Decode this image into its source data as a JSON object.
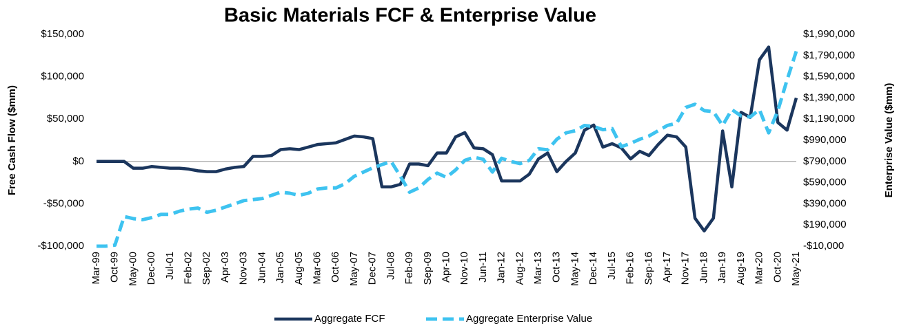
{
  "chart_data": {
    "type": "line",
    "title": "Basic Materials FCF & Enterprise Value",
    "y_label": "Free Cash Flow ($mm)",
    "y2_label": "Enterprise Value ($mm)",
    "categories": [
      "Mar-99",
      null,
      "Oct-99",
      null,
      "May-00",
      null,
      "Dec-00",
      null,
      "Jul-01",
      null,
      "Feb-02",
      null,
      "Sep-02",
      null,
      "Apr-03",
      null,
      "Nov-03",
      null,
      "Jun-04",
      null,
      "Jan-05",
      null,
      "Aug-05",
      null,
      "Mar-06",
      null,
      "Oct-06",
      null,
      "May-07",
      null,
      "Dec-07",
      null,
      "Jul-08",
      null,
      "Feb-09",
      null,
      "Sep-09",
      null,
      "Apr-10",
      null,
      "Nov-10",
      null,
      "Jun-11",
      null,
      "Jan-12",
      null,
      "Aug-12",
      null,
      "Mar-13",
      null,
      "Oct-13",
      null,
      "May-14",
      null,
      "Dec-14",
      null,
      "Jul-15",
      null,
      "Feb-16",
      null,
      "Sep-16",
      null,
      "Apr-17",
      null,
      "Nov-17",
      null,
      "Jun-18",
      null,
      "Jan-19",
      null,
      "Aug-19",
      null,
      "Mar-20",
      null,
      "Oct-20",
      null,
      "May-21"
    ],
    "series": [
      {
        "name": "Aggregate FCF",
        "color": "#1b365d",
        "dash": false,
        "axis": "y",
        "values": [
          0,
          0,
          0,
          0,
          -8000,
          -8000,
          -6000,
          -7000,
          -8000,
          -8000,
          -9000,
          -11000,
          -12000,
          -12000,
          -9000,
          -7000,
          -6000,
          6000,
          6000,
          7000,
          14000,
          15000,
          14000,
          17000,
          20000,
          21000,
          22000,
          26000,
          30000,
          29000,
          27000,
          -30000,
          -30000,
          -27000,
          -3000,
          -3000,
          -5000,
          10000,
          10000,
          29000,
          34000,
          16000,
          15000,
          8000,
          -23000,
          -23000,
          -23000,
          -15000,
          3000,
          10000,
          -12000,
          0,
          10000,
          37000,
          43000,
          17000,
          21000,
          16000,
          3000,
          12000,
          7000,
          20000,
          31000,
          29000,
          17000,
          -67000,
          -82000,
          -67000,
          36000,
          -30000,
          58000,
          52000,
          120000,
          135000,
          46000,
          37000,
          75000
        ]
      },
      {
        "name": "Aggregate Enterprise Value",
        "color": "#3ec3f0",
        "dash": true,
        "axis": "y2",
        "values": [
          -10000,
          -10000,
          0,
          270000,
          250000,
          240000,
          260000,
          290000,
          290000,
          320000,
          340000,
          350000,
          310000,
          330000,
          360000,
          390000,
          420000,
          430000,
          440000,
          470000,
          500000,
          490000,
          470000,
          490000,
          530000,
          540000,
          540000,
          580000,
          650000,
          690000,
          730000,
          760000,
          790000,
          650000,
          500000,
          540000,
          620000,
          680000,
          640000,
          710000,
          800000,
          830000,
          810000,
          690000,
          820000,
          790000,
          770000,
          800000,
          910000,
          900000,
          1000000,
          1060000,
          1080000,
          1130000,
          1120000,
          1090000,
          1100000,
          930000,
          960000,
          1000000,
          1030000,
          1080000,
          1130000,
          1150000,
          1300000,
          1330000,
          1270000,
          1260000,
          1130000,
          1280000,
          1220000,
          1210000,
          1280000,
          1060000,
          1270000,
          1560000,
          1830000
        ]
      }
    ],
    "ylim": [
      -100000,
      150000
    ],
    "yticks": [
      {
        "value": -100000,
        "label": "-$100,000"
      },
      {
        "value": -50000,
        "label": "-$50,000"
      },
      {
        "value": 0,
        "label": "$0"
      },
      {
        "value": 50000,
        "label": "$50,000"
      },
      {
        "value": 100000,
        "label": "$100,000"
      },
      {
        "value": 150000,
        "label": "$150,000"
      }
    ],
    "y2lim": [
      -10000,
      1990000
    ],
    "y2ticks": [
      {
        "value": -10000,
        "label": "-$10,000"
      },
      {
        "value": 190000,
        "label": "$190,000"
      },
      {
        "value": 390000,
        "label": "$390,000"
      },
      {
        "value": 590000,
        "label": "$590,000"
      },
      {
        "value": 790000,
        "label": "$790,000"
      },
      {
        "value": 990000,
        "label": "$990,000"
      },
      {
        "value": 1190000,
        "label": "$1,190,000"
      },
      {
        "value": 1390000,
        "label": "$1,390,000"
      },
      {
        "value": 1590000,
        "label": "$1,590,000"
      },
      {
        "value": 1790000,
        "label": "$1,790,000"
      },
      {
        "value": 1990000,
        "label": "$1,990,000"
      }
    ],
    "grid": false,
    "legend": "bottom"
  }
}
